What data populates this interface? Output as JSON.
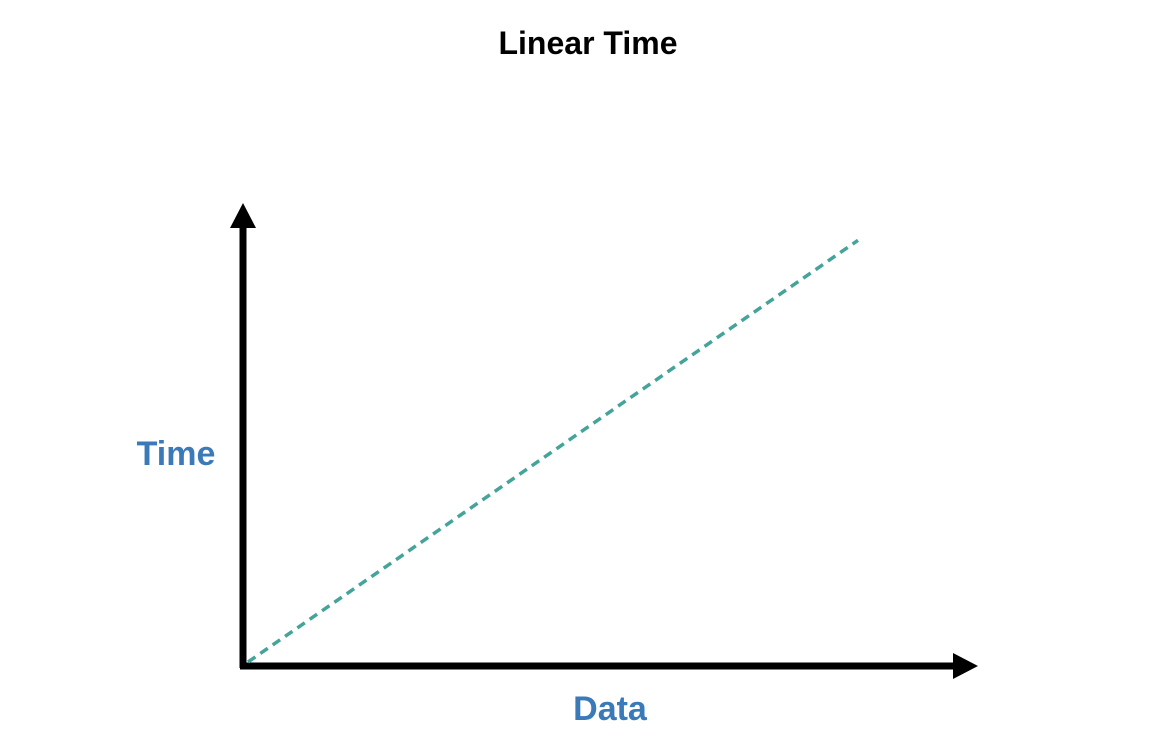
{
  "chart_data": {
    "type": "line",
    "title": "Linear Time",
    "xlabel": "Data",
    "ylabel": "Time",
    "x": [
      0,
      1
    ],
    "series": [
      {
        "values": [
          0,
          1
        ]
      }
    ],
    "xlim": [
      0,
      1.2
    ],
    "ylim": [
      0,
      1.06
    ],
    "grid": false,
    "legend": "none",
    "line_style": "dashed",
    "colors": {
      "title": "#000000",
      "axis_labels": "#3a7ab8",
      "axes": "#000000",
      "series": "#45a49a"
    }
  }
}
